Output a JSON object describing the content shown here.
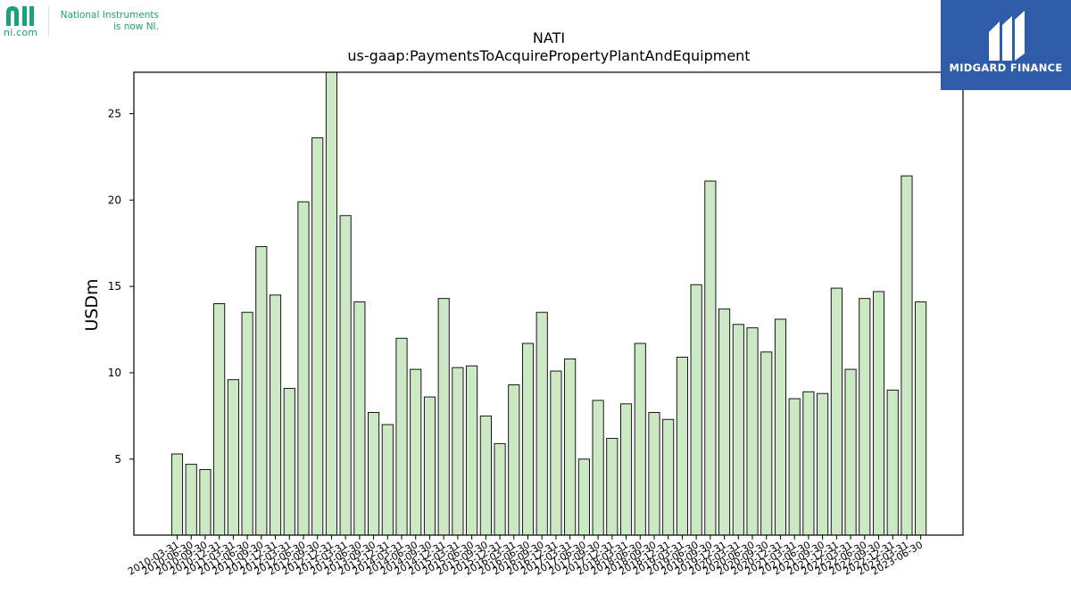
{
  "logos": {
    "ni": {
      "domain": "ni.com",
      "tagline_line1": "National Instruments",
      "tagline_line2": "is now NI.",
      "color": "#1aa37a"
    },
    "midgard": {
      "name": "MIDGARD FINANCE",
      "background": "#2e5ca8"
    }
  },
  "chart_data": {
    "type": "bar",
    "title": "NATI",
    "subtitle": "us-gaap:PaymentsToAcquirePropertyPlantAndEquipment",
    "ylabel": "USDm",
    "xlabel": "",
    "ylim": [
      0.6,
      27.4
    ],
    "yticks": [
      5,
      10,
      15,
      20,
      25
    ],
    "grid": false,
    "bar_color": "#cce8c4",
    "bar_edge": "#000000",
    "categories": [
      "2010-03-31",
      "2010-06-30",
      "2010-09-30",
      "2010-12-31",
      "2011-03-31",
      "2011-06-30",
      "2011-09-30",
      "2011-12-31",
      "2012-03-31",
      "2012-06-30",
      "2012-09-30",
      "2012-12-31",
      "2013-03-31",
      "2013-06-30",
      "2013-09-30",
      "2013-12-31",
      "2014-03-31",
      "2014-06-30",
      "2014-09-30",
      "2014-12-31",
      "2015-03-31",
      "2015-06-30",
      "2015-09-30",
      "2015-12-31",
      "2016-03-31",
      "2016-06-30",
      "2016-09-30",
      "2016-12-31",
      "2017-03-31",
      "2017-06-30",
      "2017-09-30",
      "2017-12-31",
      "2018-03-31",
      "2018-06-30",
      "2018-09-30",
      "2018-12-31",
      "2019-03-31",
      "2019-06-30",
      "2019-09-30",
      "2019-12-31",
      "2020-03-31",
      "2020-06-30",
      "2020-09-30",
      "2020-12-31",
      "2021-03-31",
      "2021-06-30",
      "2021-09-30",
      "2021-12-31",
      "2022-03-31",
      "2022-06-30",
      "2022-09-30",
      "2022-12-31",
      "2023-03-31",
      "2023-06-30"
    ],
    "values": [
      5.3,
      4.7,
      4.4,
      14.0,
      9.6,
      13.5,
      17.3,
      14.5,
      9.1,
      19.9,
      23.6,
      27.4,
      19.1,
      14.1,
      7.7,
      7.0,
      12.0,
      10.2,
      8.6,
      14.3,
      10.3,
      10.4,
      7.5,
      5.9,
      9.3,
      11.7,
      13.5,
      10.1,
      10.8,
      5.0,
      8.4,
      6.2,
      8.2,
      11.7,
      7.7,
      7.3,
      10.9,
      15.1,
      21.1,
      13.7,
      12.8,
      12.6,
      11.2,
      13.1,
      8.5,
      8.9,
      8.8,
      14.9,
      10.2,
      14.3,
      14.7,
      9.0,
      21.4,
      14.1
    ]
  }
}
